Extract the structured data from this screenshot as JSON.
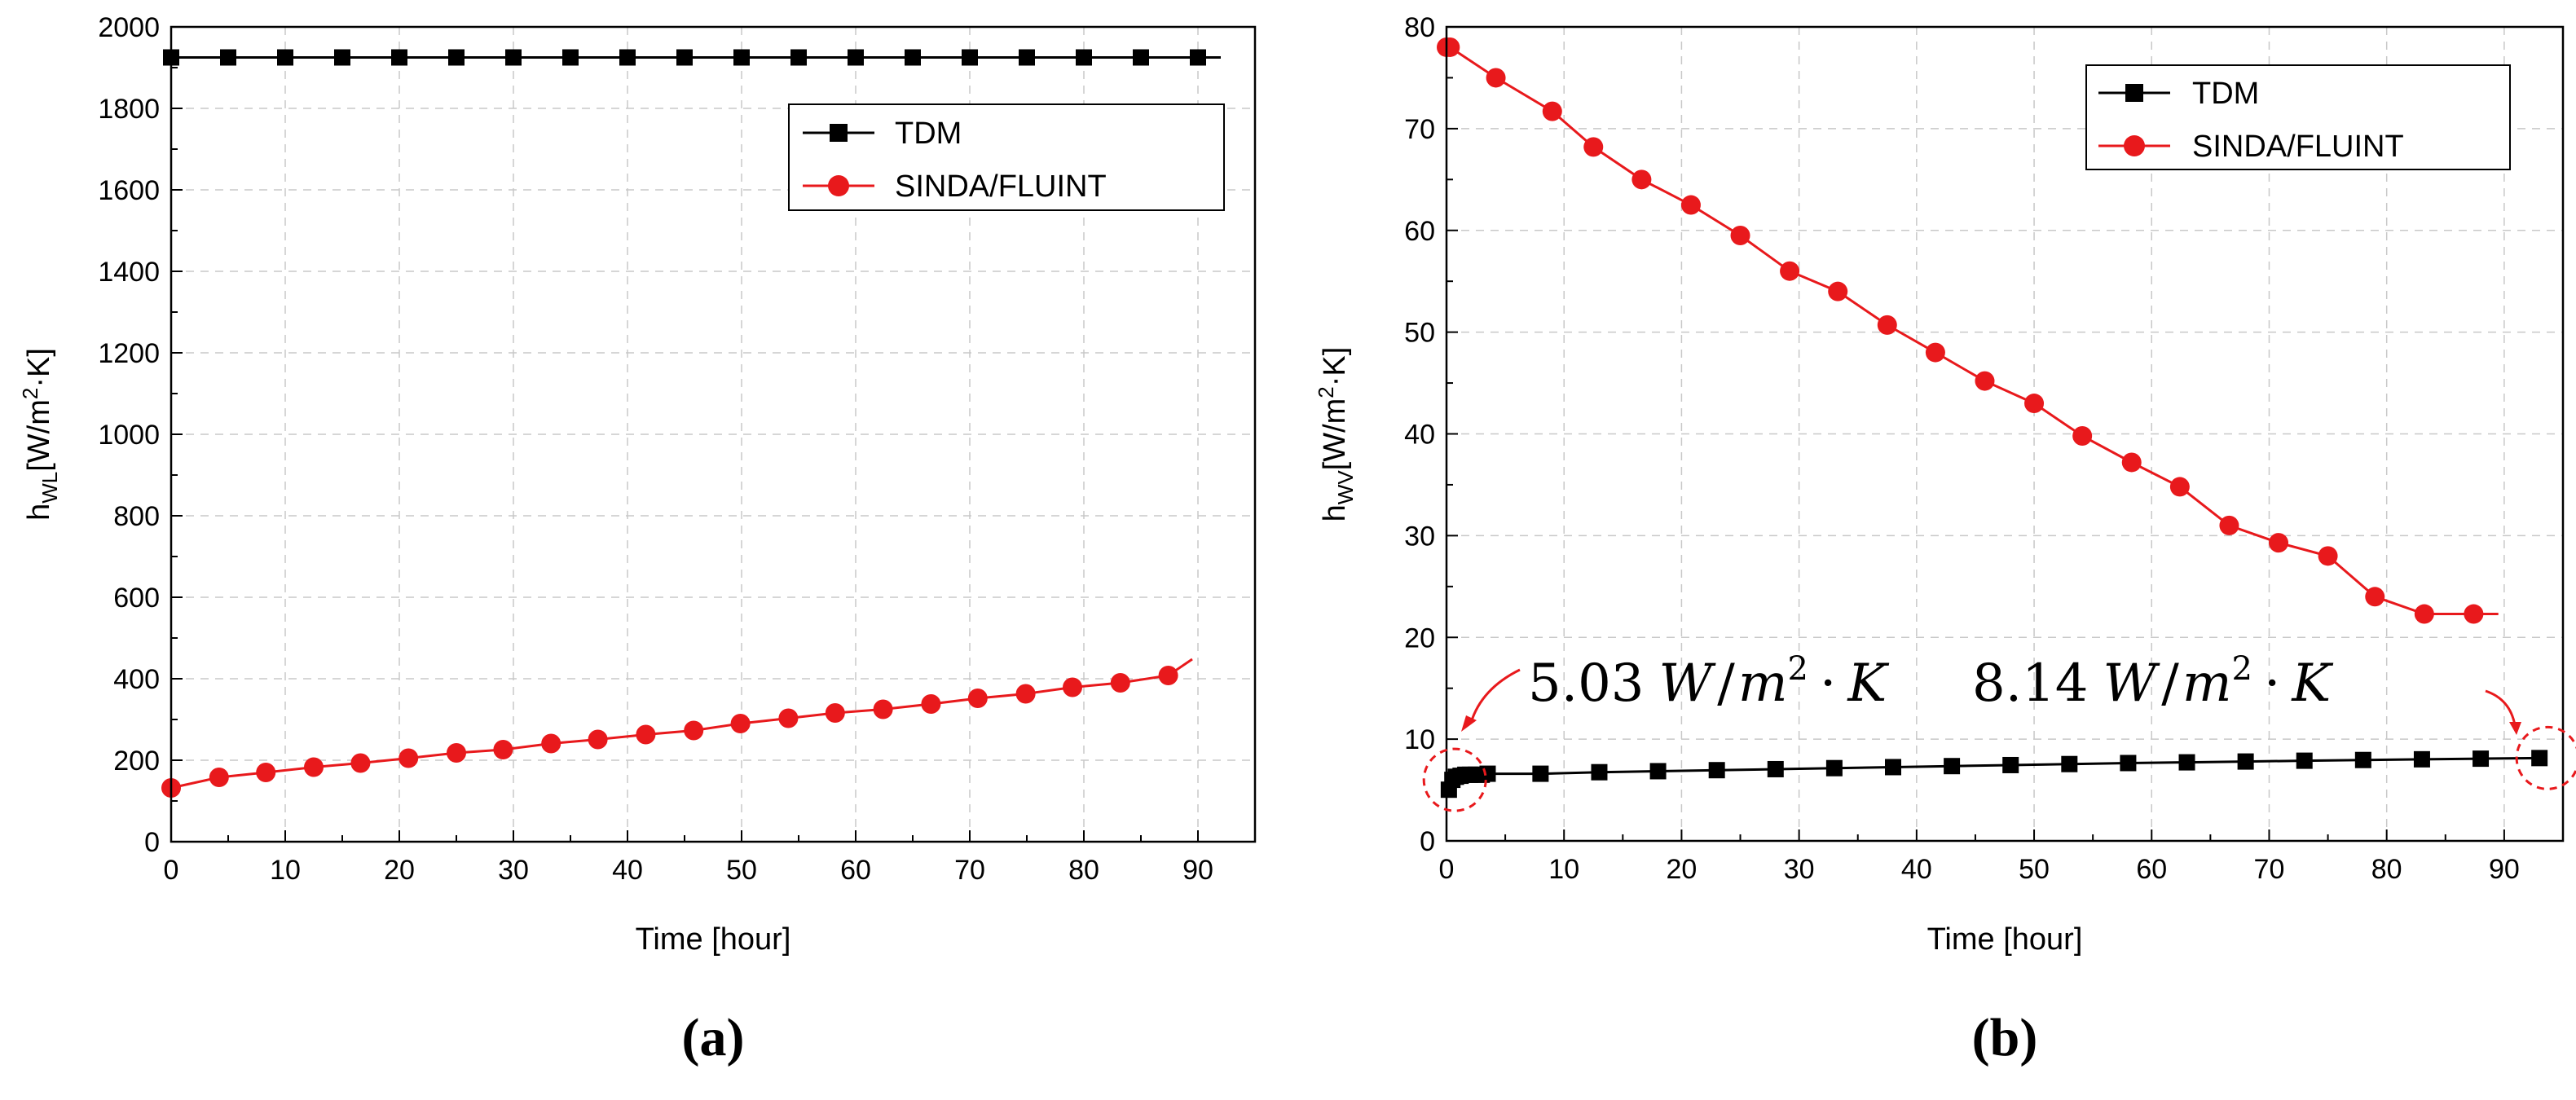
{
  "chart_data": [
    {
      "type": "line",
      "panel": "(a)",
      "xlabel": "Time [hour]",
      "ylabel": "h",
      "ylabel_sub": "WL",
      "ylabel_unit": "[W/m",
      "ylabel_sup": "2",
      "ylabel_unit2": "·K]",
      "xlim": [
        0,
        95
      ],
      "ylim": [
        0,
        2000
      ],
      "xticks": [
        0,
        10,
        20,
        30,
        40,
        50,
        60,
        70,
        80,
        90
      ],
      "yticks": [
        0,
        200,
        400,
        600,
        800,
        1000,
        1200,
        1400,
        1600,
        1800,
        2000
      ],
      "legend_position": "top-right",
      "series": [
        {
          "name": "TDM",
          "color": "#000000",
          "marker": "square",
          "x": [
            0,
            5,
            10,
            15,
            20,
            25,
            30,
            35,
            40,
            45,
            50,
            55,
            60,
            65,
            70,
            75,
            80,
            85,
            90
          ],
          "y": [
            1925,
            1925,
            1925,
            1925,
            1925,
            1925,
            1925,
            1925,
            1925,
            1925,
            1925,
            1925,
            1925,
            1925,
            1925,
            1925,
            1925,
            1925,
            1925
          ],
          "line_x_end": 92,
          "line_y_end": 1925
        },
        {
          "name": "SINDA/FLUINT",
          "color": "#e8191c",
          "marker": "circle",
          "x": [
            0,
            4.2,
            8.3,
            12.5,
            16.6,
            20.8,
            25,
            29.1,
            33.3,
            37.4,
            41.6,
            45.8,
            49.9,
            54.1,
            58.2,
            62.4,
            66.6,
            70.7,
            74.9,
            79,
            83.2,
            87.4
          ],
          "y": [
            132,
            158,
            170,
            183,
            193,
            205,
            218,
            226,
            241,
            251,
            263,
            273,
            290,
            303,
            316,
            325,
            338,
            352,
            363,
            379,
            390,
            408
          ],
          "line_x_end": 89.5,
          "line_y_end": 448
        }
      ]
    },
    {
      "type": "line",
      "panel": "(b)",
      "xlabel": "Time [hour]",
      "ylabel": "h",
      "ylabel_sub": "WV",
      "ylabel_unit": "[W/m",
      "ylabel_sup": "2",
      "ylabel_unit2": "·K]",
      "xlim": [
        0,
        95
      ],
      "ylim": [
        0,
        80
      ],
      "xticks": [
        0,
        10,
        20,
        30,
        40,
        50,
        60,
        70,
        80,
        90
      ],
      "yticks": [
        0,
        10,
        20,
        30,
        40,
        50,
        60,
        70,
        80
      ],
      "legend_position": "top-right",
      "series": [
        {
          "name": "TDM",
          "color": "#000000",
          "marker": "square",
          "x": [
            0.2,
            0.5,
            0.8,
            1.2,
            1.6,
            2.0,
            2.5,
            3.0,
            3.5,
            8,
            13,
            18,
            23,
            28,
            33,
            38,
            43,
            48,
            53,
            58,
            63,
            68,
            73,
            78,
            83,
            88,
            93
          ],
          "y": [
            5.03,
            6.0,
            6.3,
            6.4,
            6.5,
            6.5,
            6.5,
            6.5,
            6.6,
            6.6,
            6.75,
            6.85,
            6.95,
            7.05,
            7.15,
            7.25,
            7.35,
            7.45,
            7.55,
            7.65,
            7.72,
            7.8,
            7.88,
            7.95,
            8.02,
            8.08,
            8.14
          ]
        },
        {
          "name": "SINDA/FLUINT",
          "color": "#e8191c",
          "marker": "circle",
          "x": [
            0,
            0.3,
            4.2,
            9,
            12.5,
            16.6,
            20.8,
            25,
            29.2,
            33.3,
            37.5,
            41.6,
            45.8,
            50,
            54.1,
            58.3,
            62.4,
            66.6,
            70.8,
            75,
            79,
            83.2,
            87.4
          ],
          "y": [
            78,
            78,
            75,
            71.7,
            68.2,
            65,
            62.5,
            59.5,
            56,
            54,
            50.7,
            48,
            45.2,
            43,
            39.8,
            37.2,
            34.8,
            31,
            29.3,
            28,
            24,
            22.3,
            22.3
          ],
          "line_x_end": 89.5,
          "line_y_end": 22.3
        }
      ],
      "annotations": [
        {
          "value": "5.03",
          "unit_W": "W",
          "unit_m": "m",
          "unit_sup": "2",
          "unit_dot": "·",
          "unit_K": "K",
          "target_x": 0.5,
          "target_y": 6
        },
        {
          "value": "8.14",
          "unit_W": "W",
          "unit_m": "m",
          "unit_sup": "2",
          "unit_dot": "·",
          "unit_K": "K",
          "target_x": 93,
          "target_y": 8.14
        }
      ]
    }
  ],
  "colors": {
    "red": "#e8191c",
    "black": "#000000",
    "grid": "#c8c8c8"
  }
}
